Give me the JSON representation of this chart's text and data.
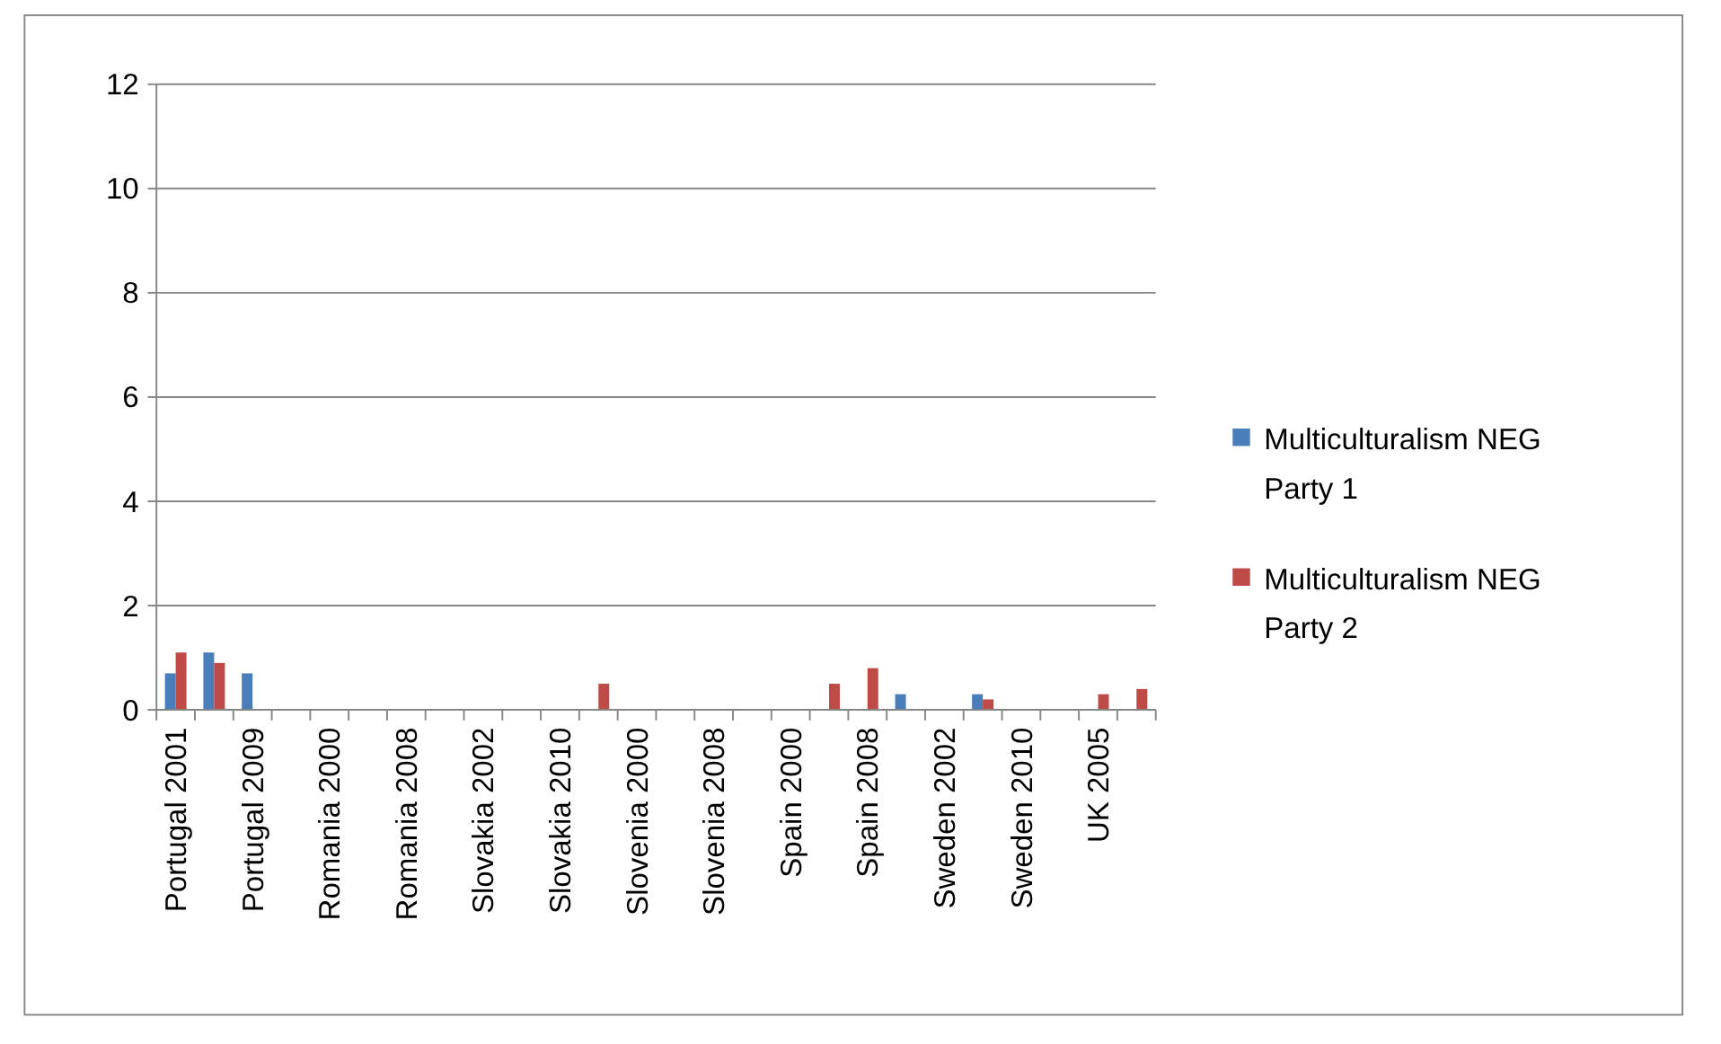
{
  "chart_data": {
    "type": "bar",
    "categories": [
      "Portugal 2001",
      null,
      "Portugal 2009",
      null,
      "Romania 2000",
      null,
      "Romania 2008",
      null,
      "Slovakia 2002",
      null,
      "Slovakia 2010",
      null,
      "Slovenia 2000",
      null,
      "Slovenia 2008",
      null,
      "Spain 2000",
      null,
      "Spain 2008",
      null,
      "Sweden 2002",
      null,
      "Sweden 2010",
      null,
      "UK 2005",
      null
    ],
    "series": [
      {
        "name": "Multiculturalism NEG Party 1",
        "color": "#4a7ebb",
        "values": [
          0.7,
          1.1,
          0.7,
          0,
          0,
          0,
          0,
          0,
          0,
          0,
          0,
          0,
          0,
          0,
          0,
          0,
          0,
          0,
          0,
          0.3,
          0,
          0.3,
          0,
          0,
          0,
          0
        ]
      },
      {
        "name": "Multiculturalism NEG Party 2",
        "color": "#be4b48",
        "values": [
          1.1,
          0.9,
          0,
          0,
          0,
          0,
          0,
          0,
          0,
          0,
          0,
          0.5,
          0,
          0,
          0,
          0,
          0,
          0.5,
          0.8,
          0,
          0,
          0.2,
          0,
          0,
          0.3,
          0.4
        ]
      }
    ],
    "ylim": [
      0,
      12
    ],
    "yticks": [
      0,
      2,
      4,
      6,
      8,
      10,
      12
    ],
    "grid": "y",
    "legend": "right"
  }
}
